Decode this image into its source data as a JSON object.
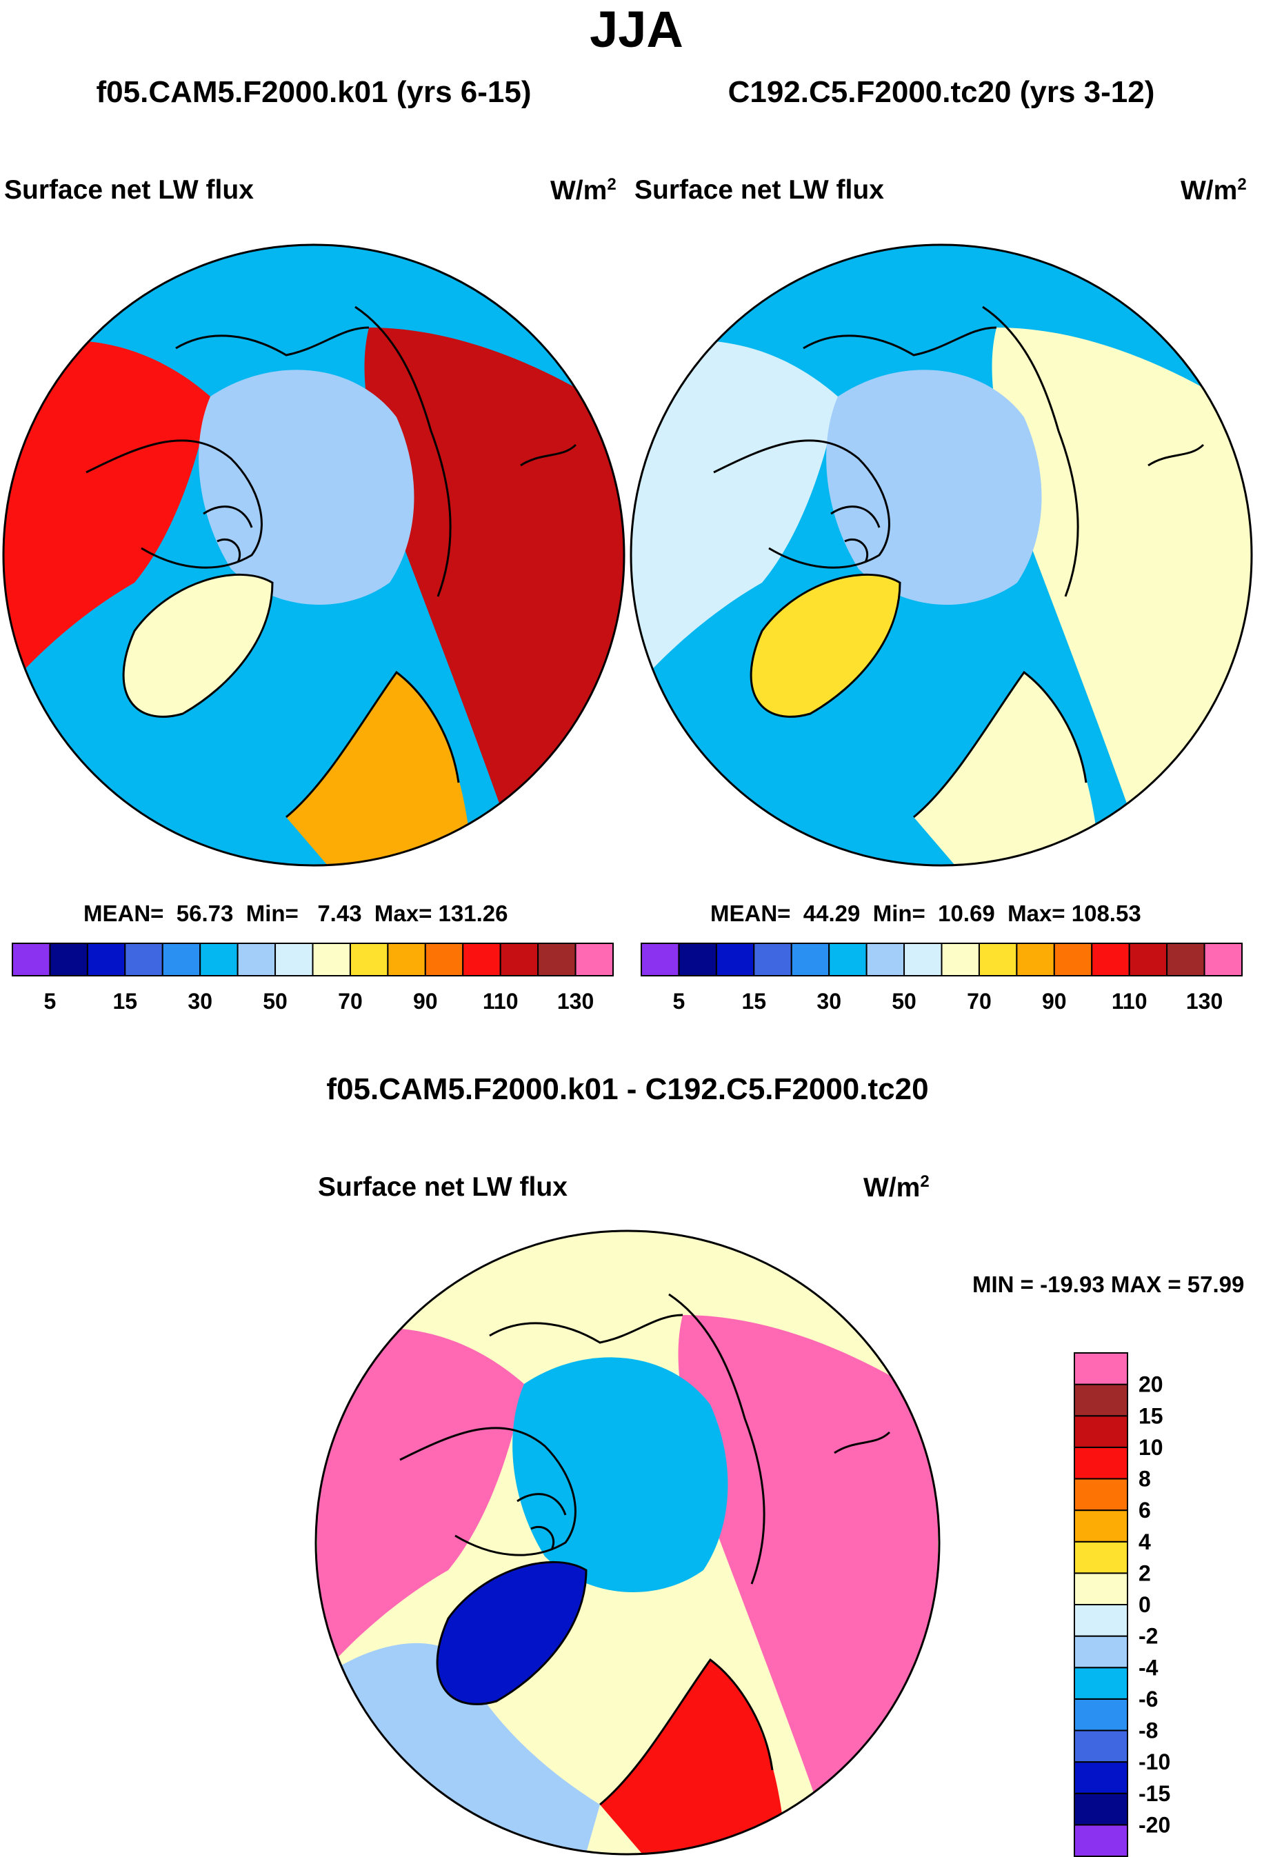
{
  "page": {
    "title": "JJA",
    "diff_title": "f05.CAM5.F2000.k01 - C192.C5.F2000.tc20"
  },
  "colors": {
    "coastline": "#000000",
    "ocean_low": "#4f9cf2",
    "land_cool": "#b7dbfa"
  },
  "chart_data": [
    {
      "type": "heatmap",
      "projection": "north-polar-stereographic",
      "case_title": "f05.CAM5.F2000.k01 (yrs 6-15)",
      "variable": "Surface net LW flux",
      "units": "W/m",
      "units_sup": "2",
      "stats": {
        "mean": "56.73",
        "min": "7.43",
        "max": "131.26"
      },
      "stats_labels": {
        "mean": "MEAN=",
        "min": "Min=",
        "max": "Max="
      },
      "colorbar": {
        "orientation": "horizontal",
        "levels": [
          5,
          10,
          15,
          20,
          30,
          40,
          50,
          60,
          70,
          80,
          90,
          100,
          110,
          120,
          130
        ],
        "tick_labels": [
          "5",
          "15",
          "30",
          "50",
          "70",
          "90",
          "110",
          "130"
        ],
        "colors": [
          "#8b31f0",
          "#02068b",
          "#0313c8",
          "#4067e2",
          "#2a91f2",
          "#04b7f0",
          "#a2cef9",
          "#d4f0fc",
          "#fdfdc7",
          "#fee12f",
          "#fdac05",
          "#fd7405",
          "#fc1111",
          "#c50f12",
          "#9f2929",
          "#ff69b4"
        ]
      },
      "regions": {
        "arctic_ocean": 45,
        "greenland": 65,
        "north_atlantic": 35,
        "siberia": 110,
        "north_america": 105,
        "europe": 85,
        "pacific": 30
      }
    },
    {
      "type": "heatmap",
      "projection": "north-polar-stereographic",
      "case_title": "C192.C5.F2000.tc20 (yrs 3-12)",
      "variable": "Surface net LW flux",
      "units": "W/m",
      "units_sup": "2",
      "stats": {
        "mean": "44.29",
        "min": "10.69",
        "max": "108.53"
      },
      "stats_labels": {
        "mean": "MEAN=",
        "min": "Min=",
        "max": "Max="
      },
      "colorbar": {
        "orientation": "horizontal",
        "levels": [
          5,
          10,
          15,
          20,
          30,
          40,
          50,
          60,
          70,
          80,
          90,
          100,
          110,
          120,
          130
        ],
        "tick_labels": [
          "5",
          "15",
          "30",
          "50",
          "70",
          "90",
          "110",
          "130"
        ],
        "colors": [
          "#8b31f0",
          "#02068b",
          "#0313c8",
          "#4067e2",
          "#2a91f2",
          "#04b7f0",
          "#a2cef9",
          "#d4f0fc",
          "#fdfdc7",
          "#fee12f",
          "#fdac05",
          "#fd7405",
          "#fc1111",
          "#c50f12",
          "#9f2929",
          "#ff69b4"
        ]
      },
      "regions": {
        "arctic_ocean": 45,
        "greenland": 75,
        "north_atlantic": 35,
        "siberia": 60,
        "north_america": 55,
        "europe": 65,
        "pacific": 30
      }
    },
    {
      "type": "heatmap",
      "projection": "north-polar-stereographic",
      "variable": "Surface net LW flux",
      "units": "W/m",
      "units_sup": "2",
      "stats_text": "MIN = -19.93 MAX =  57.99",
      "colorbar": {
        "orientation": "vertical",
        "levels": [
          -20,
          -15,
          -10,
          -8,
          -6,
          -4,
          -2,
          0,
          2,
          4,
          6,
          8,
          10,
          15,
          20
        ],
        "tick_labels": [
          "20",
          "15",
          "10",
          "8",
          "6",
          "4",
          "2",
          "0",
          "-2",
          "-4",
          "-6",
          "-8",
          "-10",
          "-15",
          "-20"
        ],
        "colors": [
          "#8b31f0",
          "#02068b",
          "#0313c8",
          "#4067e2",
          "#2a91f2",
          "#04b7f0",
          "#a2cef9",
          "#d4f0fc",
          "#fdfdc7",
          "#fee12f",
          "#fdac05",
          "#fd7405",
          "#fc1111",
          "#c50f12",
          "#9f2929",
          "#ff69b4"
        ]
      },
      "regions": {
        "arctic_ocean": -5,
        "greenland": -12,
        "north_atlantic": -3,
        "siberia": 25,
        "north_america": 25,
        "europe": 8,
        "pacific": 0
      }
    }
  ]
}
